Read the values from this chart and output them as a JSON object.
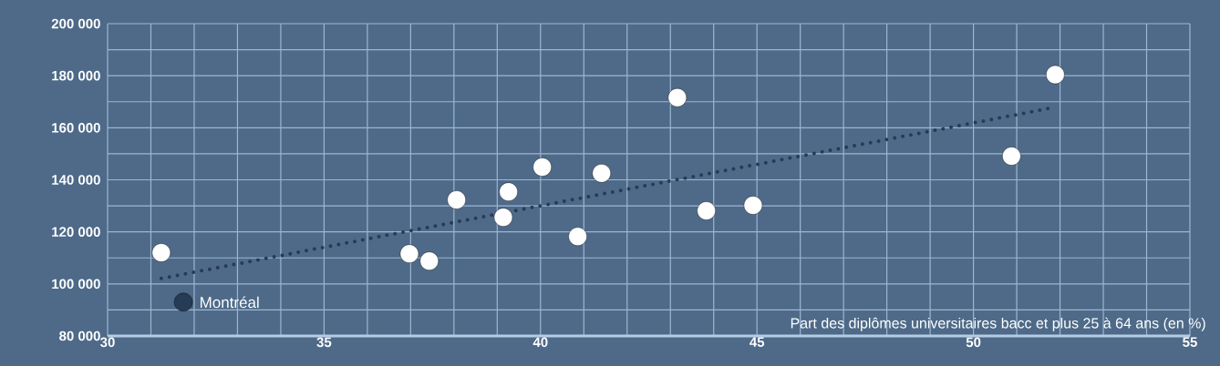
{
  "chart_data": {
    "type": "scatter",
    "xlabel": "Part des diplômes universitaires bacc et plus 25 à 64 ans (en %)",
    "xlim": [
      30,
      55
    ],
    "xticks": [
      30,
      35,
      40,
      45,
      50,
      55
    ],
    "ylim": [
      80000,
      200000
    ],
    "yticks": [
      {
        "value": 80000,
        "label": "80 000"
      },
      {
        "value": 100000,
        "label": "100 000"
      },
      {
        "value": 120000,
        "label": "120 000"
      },
      {
        "value": 140000,
        "label": "140 000"
      },
      {
        "value": 160000,
        "label": "160 000"
      },
      {
        "value": 180000,
        "label": "180 000"
      },
      {
        "value": 200000,
        "label": "200 000"
      }
    ],
    "grid": true,
    "marker": "circle",
    "series": [
      {
        "color": "#ffffff",
        "x": [
          31.24,
          36.97,
          37.43,
          38.06,
          39.14,
          39.26,
          40.04,
          40.86,
          41.41,
          43.16,
          43.83,
          44.91,
          50.88,
          51.89
        ],
        "values": [
          112000,
          111600,
          108800,
          132300,
          125600,
          135400,
          144900,
          118200,
          142500,
          171600,
          128100,
          130200,
          149100,
          180400
        ]
      },
      {
        "name": "Montréal",
        "color": "#263b55",
        "x": [
          31.75
        ],
        "values": [
          93000
        ]
      },
      {
        "type": "line",
        "line_style": "dotted",
        "marker": "none",
        "color": "#263b55",
        "x": [
          31.24,
          51.83
        ],
        "values": [
          102100,
          167700
        ]
      }
    ]
  }
}
